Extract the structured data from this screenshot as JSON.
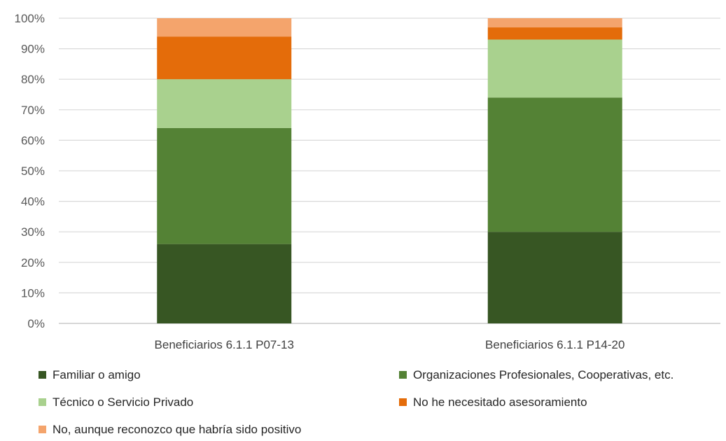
{
  "chart_data": {
    "type": "bar",
    "stacked": true,
    "percent_stacked": true,
    "categories": [
      "Beneficiarios 6.1.1 P07-13",
      "Beneficiarios 6.1.1 P14-20"
    ],
    "series": [
      {
        "name": "Familiar o amigo",
        "values": [
          26,
          30
        ],
        "color": "#375623"
      },
      {
        "name": "Organizaciones Profesionales, Cooperativas, etc.",
        "values": [
          38,
          44
        ],
        "color": "#548235"
      },
      {
        "name": "Técnico o Servicio Privado",
        "values": [
          16,
          19
        ],
        "color": "#a9d18e"
      },
      {
        "name": "No he necesitado asesoramiento",
        "values": [
          14,
          4
        ],
        "color": "#e46c0a"
      },
      {
        "name": "No, aunque reconozco que habría sido positivo",
        "values": [
          6,
          3
        ],
        "color": "#f4a46c"
      }
    ],
    "yticks": [
      "0%",
      "10%",
      "20%",
      "30%",
      "40%",
      "50%",
      "60%",
      "70%",
      "80%",
      "90%",
      "100%"
    ],
    "ylim": [
      0,
      100
    ],
    "grid": true,
    "gridline_color": "#d9d9d9",
    "legend_position": "bottom"
  }
}
